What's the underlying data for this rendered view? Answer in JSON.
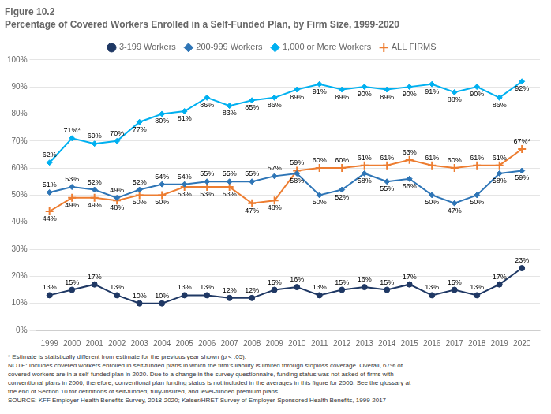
{
  "chart_data": {
    "type": "line",
    "title": "Figure 10.2",
    "subtitle": "Percentage of Covered Workers Enrolled in a Self-Funded Plan, by Firm Size, 1999-2020",
    "x": [
      1999,
      2000,
      2001,
      2002,
      2003,
      2004,
      2005,
      2006,
      2007,
      2008,
      2009,
      2010,
      2011,
      2012,
      2013,
      2014,
      2015,
      2016,
      2017,
      2018,
      2019,
      2020
    ],
    "xlim": [
      1998.4,
      2020.8
    ],
    "xticks": [
      1999,
      2000,
      2001,
      2002,
      2003,
      2004,
      2005,
      2006,
      2007,
      2008,
      2009,
      2010,
      2011,
      2012,
      2013,
      2014,
      2015,
      2016,
      2017,
      2018,
      2019,
      2020
    ],
    "ylim": [
      0,
      100
    ],
    "yticks": [
      {
        "value": 0,
        "label": "0%"
      },
      {
        "value": 10,
        "label": "10%"
      },
      {
        "value": 20,
        "label": "20%"
      },
      {
        "value": 30,
        "label": "30%"
      },
      {
        "value": 40,
        "label": "40%"
      },
      {
        "value": 50,
        "label": "50%"
      },
      {
        "value": 60,
        "label": "60%"
      },
      {
        "value": 70,
        "label": "70%"
      },
      {
        "value": 80,
        "label": "80%"
      },
      {
        "value": 90,
        "label": "90%"
      },
      {
        "value": 100,
        "label": "100%"
      }
    ],
    "grid": "y",
    "legend": "top",
    "data_labels": true,
    "series": [
      {
        "name": "3-199 Workers",
        "color": "#1f3864",
        "marker": "circle",
        "values": [
          13,
          15,
          17,
          13,
          10,
          10,
          13,
          13,
          12,
          12,
          15,
          16,
          13,
          15,
          16,
          15,
          17,
          13,
          15,
          13,
          17,
          23
        ],
        "value_labels": [
          "13%",
          "15%",
          "17%",
          "13%",
          "10%",
          "10%",
          "13%",
          "13%",
          "12%",
          "12%",
          "15%",
          "16%",
          "13%",
          "15%",
          "16%",
          "15%",
          "17%",
          "13%",
          "15%",
          "13%",
          "17%",
          "23%"
        ]
      },
      {
        "name": "200-999 Workers",
        "color": "#2e75b6",
        "marker": "diamond",
        "values": [
          51,
          53,
          52,
          49,
          52,
          54,
          54,
          55,
          55,
          55,
          57,
          58,
          50,
          52,
          58,
          55,
          56,
          50,
          47,
          50,
          58,
          59
        ],
        "value_labels": [
          "51%",
          "53%",
          "52%",
          "49%",
          "52%",
          "54%",
          "54%",
          "55%",
          "55%",
          "55%",
          "57%",
          "58%",
          "50%",
          "52%",
          "58%",
          "55%",
          "56%",
          "50%",
          "47%",
          "50%",
          "58%",
          "59%"
        ]
      },
      {
        "name": "1,000 or More Workers",
        "color": "#00b0f0",
        "marker": "diamond",
        "values": [
          62,
          71,
          69,
          70,
          77,
          80,
          81,
          86,
          83,
          85,
          86,
          89,
          91,
          89,
          90,
          89,
          90,
          91,
          88,
          90,
          86,
          92
        ],
        "value_labels": [
          "62%",
          "71%*",
          "69%",
          "70%",
          "77%",
          "80%",
          "81%",
          "86%",
          "83%",
          "85%",
          "86%",
          "89%",
          "91%",
          "89%",
          "90%",
          "89%",
          "90%",
          "91%",
          "88%",
          "90%",
          "86%",
          "92%"
        ]
      },
      {
        "name": "ALL FIRMS",
        "color": "#ed7d31",
        "marker": "plus",
        "values": [
          44,
          49,
          49,
          48,
          50,
          50,
          53,
          53,
          53,
          47,
          48,
          59,
          60,
          60,
          61,
          61,
          63,
          61,
          60,
          61,
          61,
          67
        ],
        "value_labels": [
          "44%",
          "49%",
          "49%",
          "48%",
          "50%",
          "50%",
          "53%",
          "53%",
          "53%",
          "47%",
          "48%",
          "59%",
          "60%",
          "60%",
          "61%",
          "61%",
          "63%",
          "61%",
          "60%",
          "61%",
          "61%",
          "67%*"
        ]
      }
    ],
    "annotations": [
      "* Estimate is statistically different from estimate for the previous year shown (p < .05).",
      "NOTE:  Includes covered workers enrolled in self-funded plans in which the firm's liability is limited through stoploss coverage. Overall, 67% of",
      "covered workers are in a self-funded plan in 2020. Due to a change in the survey questionnaire, funding status was not asked of firms with",
      "conventional plans in 2006; therefore, conventional plan funding status is not included in the averages in this figure for 2006. See the glossary at",
      "the end of Section 10 for definitions of self-funded, fully-insured, and level-funded premium plans.",
      "SOURCE:  KFF Employer Health Benefits Survey, 2018-2020; Kaiser/HRET Survey of Employer-Sponsored Health Benefits, 1999-2017"
    ]
  }
}
